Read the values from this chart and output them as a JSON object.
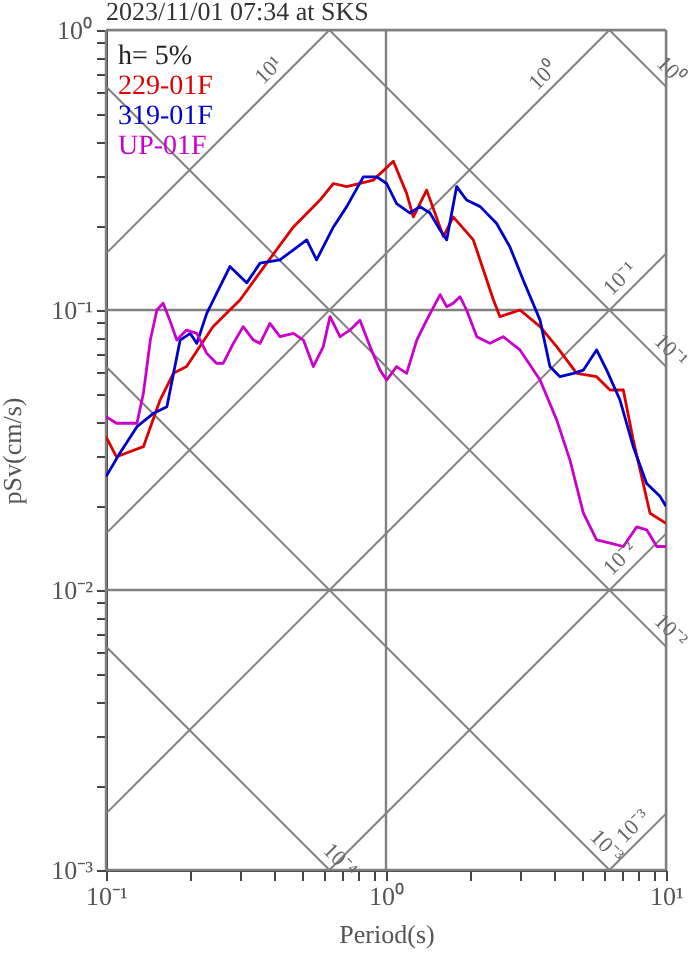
{
  "chart_data": {
    "type": "line",
    "title": "2023/11/01 07:34 at SKS",
    "xlabel": "Period(s)",
    "ylabel": "pSv(cm/s)",
    "legend_title": "h= 5%",
    "legend": "top left",
    "log": "xy",
    "grid": true,
    "line_style": "solid",
    "marker": "none",
    "xlim": [
      0.1,
      10
    ],
    "ylim": [
      0.001,
      1
    ],
    "xticks": [
      {
        "value": 0.1,
        "label": "10⁻¹"
      },
      {
        "value": 0.2,
        "label": null
      },
      {
        "value": 0.3,
        "label": null
      },
      {
        "value": 0.4,
        "label": null
      },
      {
        "value": 0.5,
        "label": null
      },
      {
        "value": 0.6,
        "label": null
      },
      {
        "value": 0.7,
        "label": null
      },
      {
        "value": 0.8,
        "label": null
      },
      {
        "value": 0.9,
        "label": null
      },
      {
        "value": 1,
        "label": "10⁰"
      },
      {
        "value": 2,
        "label": null
      },
      {
        "value": 3,
        "label": null
      },
      {
        "value": 4,
        "label": null
      },
      {
        "value": 5,
        "label": null
      },
      {
        "value": 6,
        "label": null
      },
      {
        "value": 7,
        "label": null
      },
      {
        "value": 8,
        "label": null
      },
      {
        "value": 9,
        "label": null
      },
      {
        "value": 10,
        "label": "10¹"
      }
    ],
    "yticks": [
      {
        "value": 0.001,
        "label": "10⁻³"
      },
      {
        "value": 0.002,
        "label": null
      },
      {
        "value": 0.003,
        "label": null
      },
      {
        "value": 0.004,
        "label": null
      },
      {
        "value": 0.005,
        "label": null
      },
      {
        "value": 0.006,
        "label": null
      },
      {
        "value": 0.007,
        "label": null
      },
      {
        "value": 0.008,
        "label": null
      },
      {
        "value": 0.009,
        "label": null
      },
      {
        "value": 0.01,
        "label": "10⁻²"
      },
      {
        "value": 0.02,
        "label": null
      },
      {
        "value": 0.03,
        "label": null
      },
      {
        "value": 0.04,
        "label": null
      },
      {
        "value": 0.05,
        "label": null
      },
      {
        "value": 0.06,
        "label": null
      },
      {
        "value": 0.07,
        "label": null
      },
      {
        "value": 0.08,
        "label": null
      },
      {
        "value": 0.09,
        "label": null
      },
      {
        "value": 0.1,
        "label": "10⁻¹"
      },
      {
        "value": 0.2,
        "label": null
      },
      {
        "value": 0.3,
        "label": null
      },
      {
        "value": 0.4,
        "label": null
      },
      {
        "value": 0.5,
        "label": null
      },
      {
        "value": 0.6,
        "label": null
      },
      {
        "value": 0.7,
        "label": null
      },
      {
        "value": 0.8,
        "label": null
      },
      {
        "value": 0.9,
        "label": null
      },
      {
        "value": 1,
        "label": "10⁰"
      }
    ],
    "series": [
      {
        "name": "229-01F",
        "color": "#dd0000",
        "x": [
          0.1,
          0.109,
          0.136,
          0.156,
          0.174,
          0.194,
          0.241,
          0.301,
          0.375,
          0.467,
          0.581,
          0.649,
          0.724,
          0.901,
          1.062,
          1.185,
          1.252,
          1.397,
          1.603,
          1.738,
          2.05,
          2.42,
          2.55,
          3.01,
          3.55,
          4.07,
          4.8,
          5.65,
          6.31,
          7.04,
          7.64,
          8.77,
          10
        ],
        "values": [
          0.0353,
          0.0299,
          0.0325,
          0.0477,
          0.0594,
          0.0628,
          0.0872,
          0.1086,
          0.147,
          0.198,
          0.247,
          0.283,
          0.276,
          0.291,
          0.34,
          0.261,
          0.215,
          0.268,
          0.183,
          0.215,
          0.178,
          0.1086,
          0.0947,
          0.1,
          0.0872,
          0.074,
          0.0594,
          0.0578,
          0.0518,
          0.0518,
          0.0343,
          0.0188,
          0.0173
        ]
      },
      {
        "name": "319-01F",
        "color": "#0000cc",
        "x": [
          0.1,
          0.112,
          0.129,
          0.148,
          0.165,
          0.184,
          0.2,
          0.211,
          0.229,
          0.255,
          0.277,
          0.318,
          0.355,
          0.418,
          0.467,
          0.521,
          0.565,
          0.649,
          0.724,
          0.83,
          0.927,
          1.005,
          1.091,
          1.218,
          1.322,
          1.436,
          1.56,
          1.647,
          1.788,
          1.94,
          2.17,
          2.48,
          2.77,
          3.09,
          3.55,
          3.85,
          4.18,
          4.67,
          5.07,
          5.65,
          6.14,
          6.85,
          7.64,
          8.53,
          9.52,
          10
        ],
        "values": [
          0.0254,
          0.0308,
          0.0383,
          0.0428,
          0.0451,
          0.0781,
          0.0825,
          0.076,
          0.0973,
          0.121,
          0.143,
          0.125,
          0.147,
          0.151,
          0.164,
          0.178,
          0.151,
          0.198,
          0.234,
          0.299,
          0.299,
          0.283,
          0.24,
          0.222,
          0.234,
          0.222,
          0.193,
          0.178,
          0.276,
          0.247,
          0.234,
          0.204,
          0.168,
          0.128,
          0.092,
          0.0628,
          0.0578,
          0.0594,
          0.061,
          0.072,
          0.061,
          0.0477,
          0.0325,
          0.024,
          0.0216,
          0.0199
        ]
      },
      {
        "name": "UP-01F",
        "color": "#cc00cc",
        "x": [
          0.1,
          0.109,
          0.122,
          0.129,
          0.136,
          0.144,
          0.152,
          0.16,
          0.169,
          0.179,
          0.194,
          0.211,
          0.229,
          0.248,
          0.262,
          0.285,
          0.309,
          0.336,
          0.355,
          0.385,
          0.418,
          0.467,
          0.507,
          0.55,
          0.597,
          0.631,
          0.685,
          0.744,
          0.807,
          0.877,
          0.952,
          1.005,
          1.091,
          1.185,
          1.288,
          1.397,
          1.56,
          1.647,
          1.738,
          1.837,
          1.94,
          2.11,
          2.35,
          2.62,
          3.01,
          3.55,
          4.07,
          4.54,
          5.07,
          5.65,
          6.31,
          7.04,
          7.86,
          8.53,
          9.27,
          10
        ],
        "values": [
          0.0416,
          0.0394,
          0.0394,
          0.0394,
          0.0504,
          0.0781,
          0.1,
          0.1057,
          0.092,
          0.0781,
          0.0848,
          0.0825,
          0.07,
          0.0645,
          0.0645,
          0.076,
          0.0872,
          0.0781,
          0.076,
          0.0896,
          0.0803,
          0.0825,
          0.0781,
          0.0628,
          0.074,
          0.0947,
          0.0803,
          0.0848,
          0.092,
          0.074,
          0.061,
          0.0562,
          0.0628,
          0.0594,
          0.0781,
          0.092,
          0.1135,
          0.1028,
          0.1057,
          0.1116,
          0.1,
          0.0803,
          0.076,
          0.0803,
          0.072,
          0.0562,
          0.0405,
          0.0291,
          0.0188,
          0.0151,
          0.0147,
          0.0143,
          0.0168,
          0.0164,
          0.0143,
          0.0143
        ]
      },
      {
        "type": "line",
        "color": "#808080",
        "x": [
          0.1,
          0.628
        ],
        "values": [
          0.00628,
          0.001
        ]
      },
      {
        "type": "line",
        "color": "#808080",
        "x": [
          0.1,
          6.28
        ],
        "values": [
          0.0628,
          0.001
        ]
      },
      {
        "type": "line",
        "color": "#808080",
        "x": [
          0.1,
          10
        ],
        "values": [
          0.628,
          0.00628
        ]
      },
      {
        "type": "line",
        "color": "#808080",
        "x": [
          0.628,
          10
        ],
        "values": [
          1,
          0.0628
        ]
      },
      {
        "type": "line",
        "color": "#808080",
        "x": [
          6.28,
          10
        ],
        "values": [
          1,
          0.628
        ]
      },
      {
        "type": "line",
        "color": "#808080",
        "x": [
          6.28,
          10
        ],
        "values": [
          0.001,
          0.00159
        ]
      },
      {
        "type": "line",
        "color": "#808080",
        "x": [
          0.628,
          10
        ],
        "values": [
          0.001,
          0.0159
        ]
      },
      {
        "type": "line",
        "color": "#808080",
        "x": [
          0.1,
          10
        ],
        "values": [
          0.00159,
          0.159
        ]
      },
      {
        "type": "line",
        "color": "#808080",
        "x": [
          0.1,
          6.28
        ],
        "values": [
          0.0159,
          1
        ]
      },
      {
        "type": "line",
        "color": "#808080",
        "x": [
          0.1,
          0.628
        ],
        "values": [
          0.159,
          1
        ]
      }
    ],
    "annotations": [
      {
        "text": "10¹",
        "x": 0.45,
        "y": 0.716
      },
      {
        "text": "10⁰",
        "x": 4.3,
        "y": 0.684
      },
      {
        "text": "10⁰",
        "x": 8.8,
        "y": 0.714
      },
      {
        "text": "10⁻¹",
        "x": 8.1,
        "y": 0.129
      },
      {
        "text": "10⁻¹",
        "x": 8.8,
        "y": 0.0714
      },
      {
        "text": "10⁻²",
        "x": 8.1,
        "y": 0.0129
      },
      {
        "text": "10⁻²",
        "x": 8.8,
        "y": 0.00714
      },
      {
        "text": "10⁻³",
        "x": 9,
        "y": 0.00143
      },
      {
        "text": "10⁻³",
        "x": 5.2,
        "y": 0.00121
      },
      {
        "text": "10⁻⁴",
        "x": 0.58,
        "y": 0.00108
      }
    ]
  }
}
